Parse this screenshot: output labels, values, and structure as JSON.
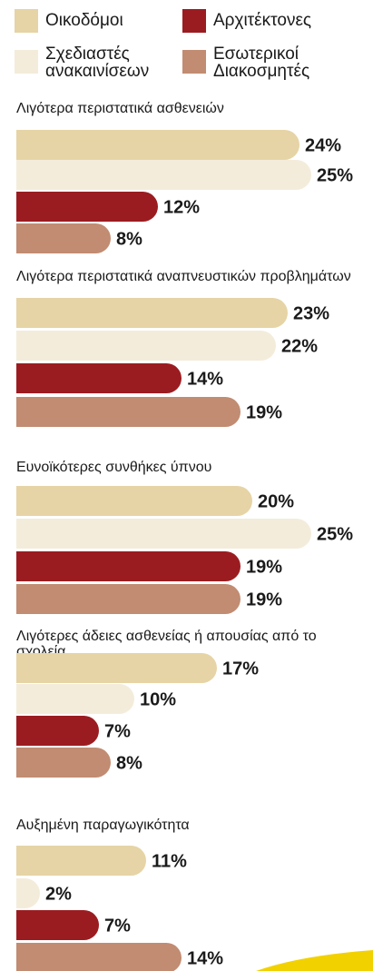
{
  "legend": [
    {
      "label_lines": [
        "Οικοδόμοι"
      ],
      "color": "#e6d4a6"
    },
    {
      "label_lines": [
        "Αρχιτέκτονες"
      ],
      "color": "#9b1c20"
    },
    {
      "label_lines": [
        "Σχεδιαστές",
        "ανακαινίσεων"
      ],
      "color": "#f4ecdb"
    },
    {
      "label_lines": [
        "Εσωτερικοί",
        "Διακοσμητές"
      ],
      "color": "#c18c72"
    }
  ],
  "chart_data": {
    "type": "bar",
    "orientation": "horizontal",
    "value_unit": "%",
    "series_colors": [
      "#e6d4a6",
      "#f4ecdb",
      "#9b1c20",
      "#c18c72"
    ],
    "series": [
      {
        "name": "Οικοδόμοι",
        "color": "#e6d4a6"
      },
      {
        "name": "Σχεδιαστές ανακαινίσεων",
        "color": "#f4ecdb"
      },
      {
        "name": "Αρχιτέκτονες",
        "color": "#9b1c20"
      },
      {
        "name": "Εσωτερικοί Διακοσμητές",
        "color": "#c18c72"
      }
    ],
    "groups": [
      {
        "title": "Λιγότερα περιστατικά ασθενειών",
        "values": [
          24,
          25,
          12,
          8
        ],
        "labels": [
          "24%",
          "25%",
          "12%",
          "8%"
        ]
      },
      {
        "title": "Λιγότερα περιστατικά αναπνευστικών προβλημάτων",
        "values": [
          23,
          22,
          14,
          19
        ],
        "labels": [
          "23%",
          "22%",
          "14%",
          "19%"
        ]
      },
      {
        "title": "Ευνοϊκότερες συνθήκες ύπνου",
        "values": [
          20,
          25,
          19,
          19
        ],
        "labels": [
          "20%",
          "25%",
          "19%",
          "19%"
        ]
      },
      {
        "title": "Λιγότερες άδειες ασθενείας ή απουσίας από το σχολεία",
        "values": [
          17,
          10,
          7,
          8
        ],
        "labels": [
          "17%",
          "10%",
          "7%",
          "8%"
        ]
      },
      {
        "title": "Αυξημένη παραγωγικότητα",
        "values": [
          11,
          2,
          7,
          14
        ],
        "labels": [
          "11%",
          "2%",
          "7%",
          "14%"
        ]
      }
    ]
  }
}
